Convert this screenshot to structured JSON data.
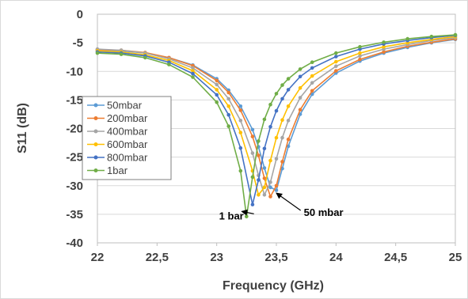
{
  "chart_data": {
    "type": "line",
    "title": "",
    "xlabel": "Frequency (GHz)",
    "ylabel": "S11 (dB)",
    "xlim": [
      22,
      25
    ],
    "ylim": [
      -40,
      0
    ],
    "xticks": [
      "22",
      "22,5",
      "23",
      "23,5",
      "24",
      "24,5",
      "25"
    ],
    "yticks": [
      "0",
      "-5",
      "-10",
      "-15",
      "-20",
      "-25",
      "-30",
      "-35",
      "-40"
    ],
    "grid": "horizontal",
    "legend_position": "left",
    "series": [
      {
        "name": "50mbar",
        "color": "#5B9BD5",
        "x": [
          22,
          22.2,
          22.4,
          22.6,
          22.8,
          23,
          23.1,
          23.2,
          23.3,
          23.35,
          23.4,
          23.45,
          23.5,
          23.55,
          23.6,
          23.7,
          23.8,
          24,
          24.2,
          24.4,
          24.6,
          24.8,
          25
        ],
        "y": [
          -6.3,
          -6.4,
          -6.8,
          -7.6,
          -8.9,
          -11.3,
          -13.3,
          -16.1,
          -20.2,
          -23.2,
          -26.9,
          -30.3,
          -30.8,
          -27.0,
          -23.1,
          -17.5,
          -14.0,
          -10.3,
          -8.2,
          -6.8,
          -5.8,
          -5.0,
          -4.4
        ]
      },
      {
        "name": "200mbar",
        "color": "#ED7D31",
        "x": [
          22,
          22.2,
          22.4,
          22.6,
          22.8,
          23,
          23.1,
          23.2,
          23.3,
          23.35,
          23.4,
          23.45,
          23.5,
          23.55,
          23.6,
          23.7,
          23.8,
          24,
          24.2,
          24.4,
          24.6,
          24.8,
          25
        ],
        "y": [
          -6.2,
          -6.3,
          -6.7,
          -7.6,
          -9.0,
          -11.6,
          -13.7,
          -16.8,
          -21.4,
          -24.7,
          -28.7,
          -31.9,
          -30.0,
          -25.8,
          -21.9,
          -16.7,
          -13.4,
          -9.9,
          -7.9,
          -6.6,
          -5.6,
          -4.9,
          -4.3
        ]
      },
      {
        "name": "400mbar",
        "color": "#A5A5A5",
        "x": [
          22,
          22.2,
          22.4,
          22.6,
          22.8,
          23,
          23.1,
          23.2,
          23.3,
          23.35,
          23.4,
          23.45,
          23.5,
          23.55,
          23.6,
          23.7,
          23.8,
          24,
          24.2,
          24.4,
          24.6,
          24.8,
          25
        ],
        "y": [
          -6.1,
          -6.3,
          -6.8,
          -7.8,
          -9.4,
          -12.3,
          -14.8,
          -18.6,
          -24.3,
          -28.2,
          -31.6,
          -29.4,
          -25.3,
          -21.6,
          -18.6,
          -14.6,
          -12.0,
          -9.1,
          -7.3,
          -6.1,
          -5.3,
          -4.6,
          -4.1
        ]
      },
      {
        "name": "600mbar",
        "color": "#FFC000",
        "x": [
          22,
          22.2,
          22.4,
          22.6,
          22.8,
          23,
          23.1,
          23.2,
          23.3,
          23.35,
          23.4,
          23.45,
          23.5,
          23.55,
          23.6,
          23.7,
          23.8,
          24,
          24.2,
          24.4,
          24.6,
          24.8,
          25
        ],
        "y": [
          -6.4,
          -6.6,
          -7.1,
          -8.1,
          -9.9,
          -13.2,
          -16.1,
          -20.7,
          -27.4,
          -31.6,
          -30.3,
          -25.6,
          -21.6,
          -18.5,
          -16.1,
          -12.9,
          -10.8,
          -8.3,
          -6.8,
          -5.7,
          -5.0,
          -4.4,
          -3.9
        ]
      },
      {
        "name": "800mbar",
        "color": "#4472C4",
        "x": [
          22,
          22.2,
          22.4,
          22.6,
          22.8,
          23,
          23.1,
          23.2,
          23.3,
          23.35,
          23.4,
          23.45,
          23.5,
          23.55,
          23.6,
          23.7,
          23.8,
          24,
          24.2,
          24.4,
          24.6,
          24.8,
          25
        ],
        "y": [
          -6.6,
          -6.8,
          -7.3,
          -8.4,
          -10.4,
          -14.1,
          -17.6,
          -23.4,
          -33.3,
          -29.0,
          -23.5,
          -19.7,
          -16.9,
          -14.8,
          -13.2,
          -10.9,
          -9.4,
          -7.4,
          -6.1,
          -5.2,
          -4.6,
          -4.1,
          -3.7
        ]
      },
      {
        "name": "1bar",
        "color": "#70AD47",
        "x": [
          22,
          22.2,
          22.4,
          22.6,
          22.8,
          23,
          23.1,
          23.2,
          23.25,
          23.3,
          23.35,
          23.4,
          23.45,
          23.5,
          23.55,
          23.6,
          23.7,
          23.8,
          24,
          24.2,
          24.4,
          24.6,
          24.8,
          25
        ],
        "y": [
          -6.8,
          -7.0,
          -7.6,
          -8.8,
          -11.0,
          -15.4,
          -19.6,
          -27.4,
          -35.4,
          -28.5,
          -22.2,
          -18.4,
          -15.8,
          -13.9,
          -12.4,
          -11.3,
          -9.6,
          -8.4,
          -6.8,
          -5.7,
          -4.9,
          -4.3,
          -3.9,
          -3.6
        ]
      }
    ],
    "annotations": [
      {
        "text": "1 bar",
        "x": 23.02,
        "y": -35.2,
        "target_x": 23.21,
        "target_y": -34.5
      },
      {
        "text": "50 mbar",
        "x": 23.73,
        "y": -34.6,
        "target_x": 23.5,
        "target_y": -31.3
      }
    ]
  }
}
